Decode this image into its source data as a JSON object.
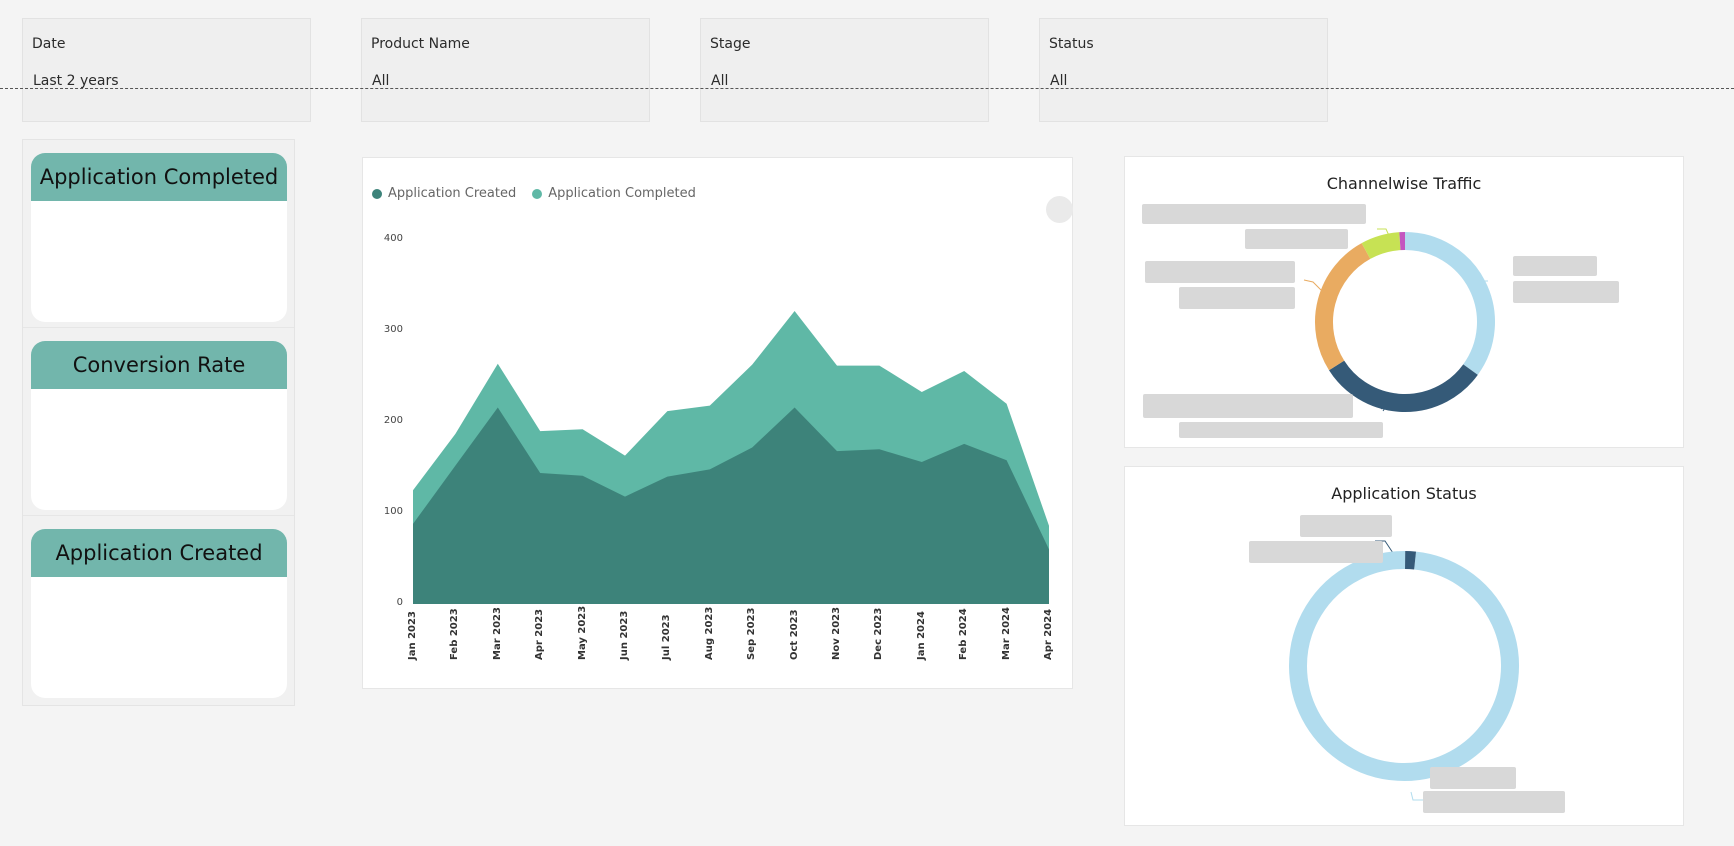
{
  "filters": [
    {
      "label": "Date",
      "value": "Last 2 years"
    },
    {
      "label": "Product Name",
      "value": "All"
    },
    {
      "label": "Stage",
      "value": "All"
    },
    {
      "label": "Status",
      "value": "All"
    }
  ],
  "kpis": [
    {
      "title": "Application Completed"
    },
    {
      "title": "Conversion Rate"
    },
    {
      "title": "Application Created"
    }
  ],
  "chart_data": {
    "type": "area",
    "title": "",
    "xlabel": "",
    "ylabel": "",
    "ylim": [
      0,
      400
    ],
    "yticks": [
      "0",
      "100",
      "200",
      "300",
      "400"
    ],
    "categories": [
      "Jan 2023",
      "Feb 2023",
      "Mar 2023",
      "Apr 2023",
      "May 2023",
      "Jun 2023",
      "Jul 2023",
      "Aug 2023",
      "Sep 2023",
      "Oct 2023",
      "Nov 2023",
      "Dec 2023",
      "Jan 2024",
      "Feb 2024",
      "Mar 2024",
      "Apr 2024"
    ],
    "series": [
      {
        "name": "Application Created",
        "color": "#3d837a",
        "values": [
          88,
          152,
          216,
          144,
          141,
          118,
          140,
          148,
          172,
          216,
          168,
          170,
          156,
          176,
          158,
          60
        ]
      },
      {
        "name": "Application Completed",
        "color": "#5fb8a6",
        "values": [
          37,
          35,
          48,
          46,
          51,
          45,
          72,
          70,
          91,
          106,
          94,
          92,
          77,
          80,
          62,
          26
        ]
      }
    ]
  },
  "channel_panel": {
    "title": "Channelwise Traffic",
    "chart_data": {
      "type": "pie",
      "slices": [
        {
          "color": "#b1dcee",
          "value": 35
        },
        {
          "color": "#355a78",
          "value": 31
        },
        {
          "color": "#e9ab61",
          "value": 26
        },
        {
          "color": "#c7e254",
          "value": 7
        },
        {
          "color": "#c457bf",
          "value": 1
        }
      ]
    }
  },
  "status_panel": {
    "title": "Application Status",
    "chart_data": {
      "type": "pie",
      "slices": [
        {
          "color": "#b1dcee",
          "value": 98.5
        },
        {
          "color": "#355a78",
          "value": 1.5
        }
      ]
    }
  }
}
